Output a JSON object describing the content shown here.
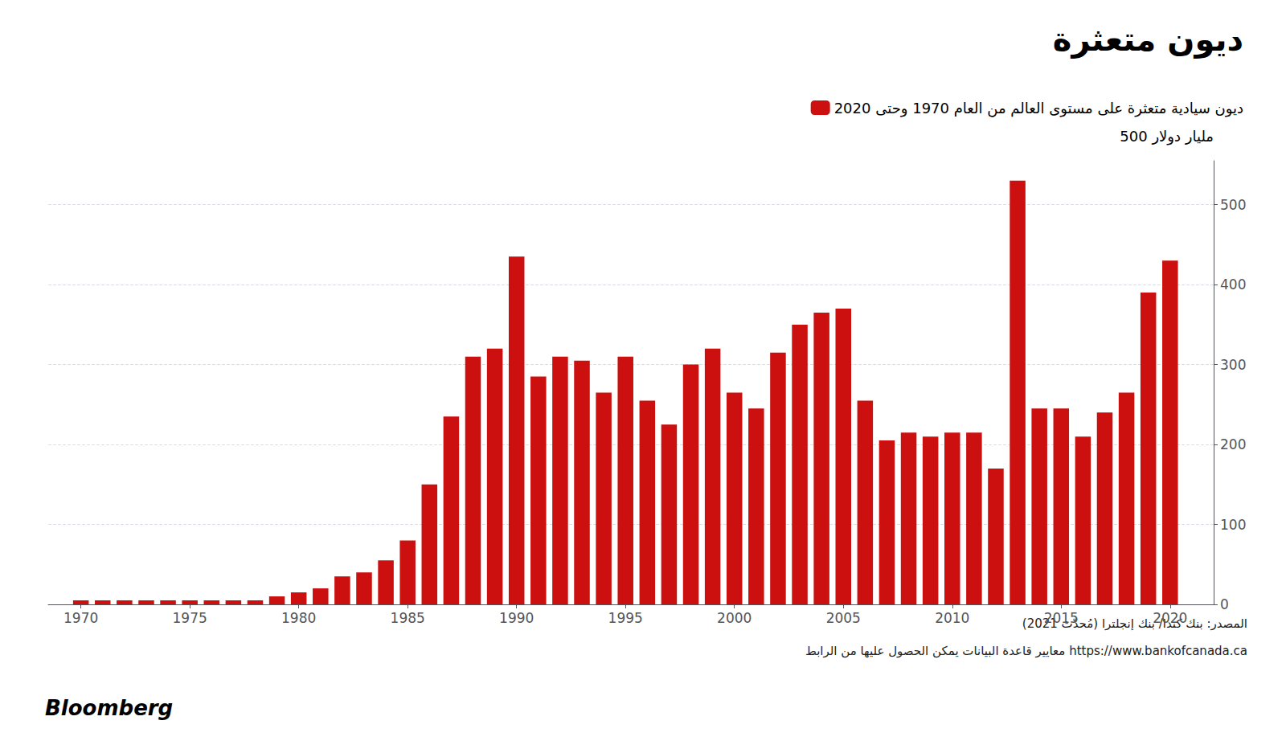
{
  "chart_data": {
    "type": "bar",
    "title": "ديون متعثرة",
    "ylabel": "500 مليار دولار",
    "annotations": [
      "المصدر: بنك كندا/ بنك إنجلترا (مُحدّث 2021)",
      "معايير قاعدة البيانات يمكن الحصول عليها من الرابط https://www.bankofcanada.ca",
      "Bloomberg"
    ],
    "x": [
      1970,
      1971,
      1972,
      1973,
      1974,
      1975,
      1976,
      1977,
      1978,
      1979,
      1980,
      1981,
      1982,
      1983,
      1984,
      1985,
      1986,
      1987,
      1988,
      1989,
      1990,
      1991,
      1992,
      1993,
      1994,
      1995,
      1996,
      1997,
      1998,
      1999,
      2000,
      2001,
      2002,
      2003,
      2004,
      2005,
      2006,
      2007,
      2008,
      2009,
      2010,
      2011,
      2012,
      2013,
      2014,
      2015,
      2016,
      2017,
      2018,
      2019,
      2020
    ],
    "series": [
      {
        "name": "ديون سيادية متعثرة على مستوى العالم من العام 1970 وحتى 2020",
        "color": "#cc1010",
        "values": [
          5,
          5,
          5,
          5,
          5,
          5,
          5,
          5,
          5,
          10,
          15,
          20,
          35,
          40,
          55,
          80,
          150,
          235,
          310,
          320,
          435,
          285,
          310,
          305,
          265,
          310,
          255,
          225,
          300,
          320,
          265,
          245,
          315,
          350,
          365,
          370,
          255,
          205,
          215,
          210,
          215,
          215,
          170,
          530,
          245,
          245,
          210,
          240,
          265,
          390,
          430
        ]
      }
    ],
    "xlim": [
      1968.5,
      2022.0
    ],
    "xticks": [
      1970,
      1975,
      1980,
      1985,
      1990,
      1995,
      2000,
      2005,
      2010,
      2015,
      2020
    ],
    "ylim": [
      0,
      555
    ],
    "yticks": [
      0,
      100,
      200,
      300,
      400,
      500
    ],
    "grid": true,
    "legend": "upper right"
  }
}
